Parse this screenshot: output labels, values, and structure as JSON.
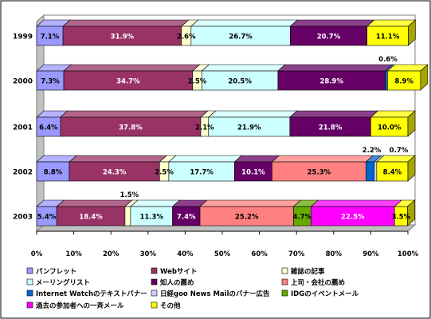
{
  "chart_data": {
    "type": "bar",
    "orientation": "horizontal",
    "stacked": "percent",
    "three_d": true,
    "title": "",
    "xlabel": "",
    "ylabel": "",
    "xlim": [
      0,
      100
    ],
    "x_ticks": [
      "0%",
      "10%",
      "20%",
      "30%",
      "40%",
      "50%",
      "60%",
      "70%",
      "80%",
      "90%",
      "100%"
    ],
    "grid": false,
    "legend_position": "bottom",
    "categories": [
      "1999",
      "2000",
      "2001",
      "2002",
      "2003"
    ],
    "series": [
      {
        "name": "パンフレット",
        "color": "#9999ff",
        "values": [
          7.1,
          7.3,
          6.4,
          8.8,
          5.4
        ]
      },
      {
        "name": "Webサイト",
        "color": "#993366",
        "values": [
          31.9,
          34.7,
          37.8,
          24.3,
          18.4
        ]
      },
      {
        "name": "雑誌の記事",
        "color": "#ffffcc",
        "values": [
          2.6,
          2.5,
          2.1,
          2.5,
          1.5
        ]
      },
      {
        "name": "メーリングリスト",
        "color": "#ccffff",
        "values": [
          26.7,
          20.5,
          21.9,
          17.7,
          11.3
        ]
      },
      {
        "name": "知人の薦め",
        "color": "#660066",
        "values": [
          20.7,
          28.9,
          21.8,
          10.1,
          7.4
        ]
      },
      {
        "name": "上司・会社の薦め",
        "color": "#ff8080",
        "values": [
          0,
          0,
          0,
          25.3,
          25.2
        ]
      },
      {
        "name": "Internet Watchのテキストバナー",
        "color": "#0066cc",
        "values": [
          0,
          0.6,
          0,
          2.2,
          0
        ]
      },
      {
        "name": "日経goo News Mailのバナー広告",
        "color": "#ccccff",
        "values": [
          0,
          0,
          0,
          0.7,
          0
        ]
      },
      {
        "name": "IDGのイベントメール",
        "color": "#66aa00",
        "values": [
          0,
          0,
          0,
          0,
          4.7
        ]
      },
      {
        "name": "過去の参加者への一斉メール",
        "color": "#ff00ff",
        "values": [
          0,
          0,
          0,
          0,
          22.5
        ]
      },
      {
        "name": "その他",
        "color": "#ffff00",
        "values": [
          11.1,
          8.9,
          10.0,
          8.4,
          3.5
        ]
      }
    ],
    "data_labels": [
      [
        "7.1%",
        "31.9%",
        "2.6%",
        "26.7%",
        "20.7%",
        null,
        null,
        null,
        null,
        null,
        "11.1%"
      ],
      [
        "7.3%",
        "34.7%",
        "2.5%",
        "20.5%",
        "28.9%",
        null,
        "0.6%",
        null,
        null,
        null,
        "8.9%"
      ],
      [
        "6.4%",
        "37.8%",
        "2.1%",
        "21.9%",
        "21.8%",
        null,
        null,
        null,
        null,
        null,
        "10.0%"
      ],
      [
        "8.8%",
        "24.3%",
        "2.5%",
        "17.7%",
        "10.1%",
        "25.3%",
        "2.2%",
        "0.7%",
        null,
        null,
        "8.4%"
      ],
      [
        "5.4%",
        "18.4%",
        "1.5%",
        "11.3%",
        "7.4%",
        "25.2%",
        null,
        null,
        "4.7%",
        "22.5%",
        "3.5%"
      ]
    ],
    "outside_labels": {
      "0.6%": true,
      "2.2%": true,
      "0.7%": true,
      "1.5%": true,
      "3.5%": true
    }
  }
}
